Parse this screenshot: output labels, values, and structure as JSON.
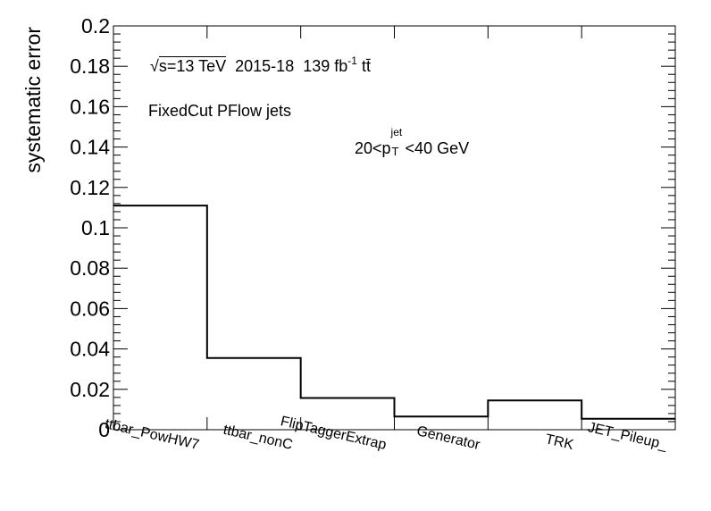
{
  "chart_data": {
    "type": "bar",
    "style": "step histogram",
    "ylabel": "systematic error",
    "xlabel": "",
    "ylim": [
      0,
      0.2
    ],
    "yticks": [
      "0",
      "0.02",
      "0.04",
      "0.06",
      "0.08",
      "0.1",
      "0.12",
      "0.14",
      "0.16",
      "0.18",
      "0.2"
    ],
    "categories": [
      "ttbar_PowHW7",
      "ttbar_nonC",
      "FlipTaggerExtrap",
      "Generator",
      "TRK",
      "JET_Pileup_"
    ],
    "values": [
      0.111,
      0.0355,
      0.0157,
      0.0065,
      0.0145,
      0.0054
    ],
    "grid": false,
    "line_color": "#000000"
  },
  "annotations": {
    "sqrt_sym": "√",
    "energy_label": "s=13 TeV",
    "years": "2015-18",
    "lumi_value": "139 fb",
    "lumi_exp": "-1",
    "process": "tt̄",
    "jets": "FixedCut PFlow jets",
    "pt_low": "20<p",
    "pt_sup": "jet",
    "pt_sub": "T",
    "pt_high": "<40 GeV"
  }
}
